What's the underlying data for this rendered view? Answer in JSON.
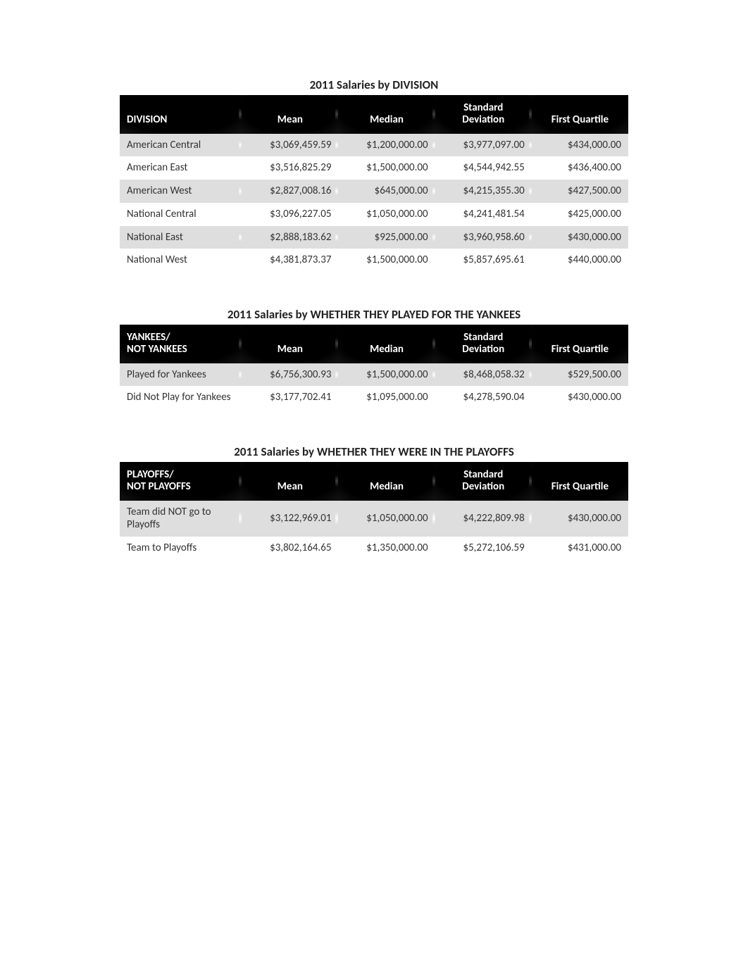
{
  "global": {
    "text_color": "#333333",
    "header_bg": "#000000",
    "header_text": "#ffffff",
    "row_odd_bg": "#dedede",
    "row_even_bg": "#ffffff",
    "title_fontsize": 17,
    "body_fontsize": 15
  },
  "tables": {
    "division": {
      "title": "2011 Salaries by DIVISION",
      "columns": [
        "DIVISION",
        "Mean",
        "Median",
        "Standard Deviation",
        "First Quartile"
      ],
      "rows": [
        {
          "label": "American Central",
          "mean": "$3,069,459.59",
          "median": "$1,200,000.00",
          "sd": "$3,977,097.00",
          "q1": "$434,000.00"
        },
        {
          "label": "American East",
          "mean": "$3,516,825.29",
          "median": "$1,500,000.00",
          "sd": "$4,544,942.55",
          "q1": "$436,400.00"
        },
        {
          "label": "American West",
          "mean": "$2,827,008.16",
          "median": "$645,000.00",
          "sd": "$4,215,355.30",
          "q1": "$427,500.00"
        },
        {
          "label": "National Central",
          "mean": "$3,096,227.05",
          "median": "$1,050,000.00",
          "sd": "$4,241,481.54",
          "q1": "$425,000.00"
        },
        {
          "label": "National East",
          "mean": "$2,888,183.62",
          "median": "$925,000.00",
          "sd": "$3,960,958.60",
          "q1": "$430,000.00"
        },
        {
          "label": "National West",
          "mean": "$4,381,873.37",
          "median": "$1,500,000.00",
          "sd": "$5,857,695.61",
          "q1": "$440,000.00"
        }
      ]
    },
    "yankees": {
      "title": "2011 Salaries by WHETHER THEY PLAYED FOR THE YANKEES",
      "columns": [
        "YANKEES/ NOT YANKEES",
        "Mean",
        "Median",
        "Standard Deviation",
        "First Quartile"
      ],
      "rows": [
        {
          "label": "Played for Yankees",
          "mean": "$6,756,300.93",
          "median": "$1,500,000.00",
          "sd": "$8,468,058.32",
          "q1": "$529,500.00"
        },
        {
          "label": "Did Not Play for Yankees",
          "mean": "$3,177,702.41",
          "median": "$1,095,000.00",
          "sd": "$4,278,590.04",
          "q1": "$430,000.00"
        }
      ]
    },
    "playoffs": {
      "title": "2011 Salaries by WHETHER THEY WERE IN THE PLAYOFFS",
      "columns": [
        "PLAYOFFS/ NOT PLAYOFFS",
        "Mean",
        "Median",
        "Standard Deviation",
        "First Quartile"
      ],
      "rows": [
        {
          "label": "Team did NOT go to Playoffs",
          "mean": "$3,122,969.01",
          "median": "$1,050,000.00",
          "sd": "$4,222,809.98",
          "q1": "$430,000.00"
        },
        {
          "label": "Team to Playoffs",
          "mean": "$3,802,164.65",
          "median": "$1,350,000.00",
          "sd": "$5,272,106.59",
          "q1": "$431,000.00"
        }
      ]
    }
  }
}
